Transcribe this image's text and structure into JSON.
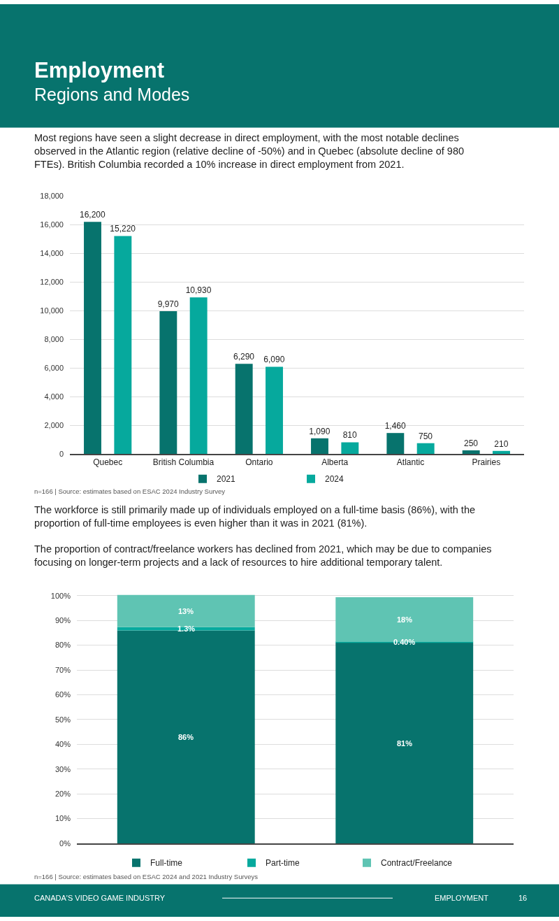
{
  "chart_data": [
    {
      "type": "bar",
      "title": "Employment",
      "subtitle": "Regions and Modes",
      "annotations": [
        "Most regions have seen a slight decrease in direct employment, with the most notable declines observed in the Atlantic region (relative decline of -50%) and in Quebec (absolute decline of 980 FTEs). British Columbia recorded a 10% increase in direct employment from 2021.",
        "n=166 | Source: estimates based on ESAC 2024 Industry Survey"
      ],
      "categories": [
        "Quebec",
        "British Columbia",
        "Ontario",
        "Alberta",
        "Atlantic",
        "Prairies"
      ],
      "series": [
        {
          "name": "2021",
          "color": "#07736d",
          "values": [
            16200,
            9970,
            6290,
            1090,
            1460,
            250
          ],
          "value_labels": [
            "16,200",
            "9,970",
            "6,290",
            "1,090",
            "1,460",
            "250"
          ]
        },
        {
          "name": "2024",
          "color": "#06a99d",
          "values": [
            15220,
            10930,
            6090,
            810,
            750,
            210
          ],
          "value_labels": [
            "15,220",
            "10,930",
            "6,090",
            "810",
            "750",
            "210"
          ]
        }
      ],
      "ylim": [
        0,
        18000
      ],
      "yticks": [
        {
          "value": 0,
          "label": "0"
        },
        {
          "value": 2000,
          "label": "2,000"
        },
        {
          "value": 4000,
          "label": "4,000"
        },
        {
          "value": 6000,
          "label": "6,000"
        },
        {
          "value": 8000,
          "label": "8,000"
        },
        {
          "value": 10000,
          "label": "10,000"
        },
        {
          "value": 12000,
          "label": "12,000"
        },
        {
          "value": 14000,
          "label": "14,000"
        },
        {
          "value": 16000,
          "label": "16,000"
        },
        {
          "value": 18000,
          "label": "18,000"
        }
      ],
      "grid": "y",
      "legend": "bottom"
    },
    {
      "type": "bar",
      "stacked": true,
      "annotations": [
        "The workforce is still primarily made up of individuals employed on a full-time basis (86%), with the proportion of full-time employees is even higher than it was in 2021 (81%).",
        "The proportion of contract/freelance workers has declined from 2021, which may be due to companies focusing on longer-term projects and a lack of resources to hire additional temporary talent.",
        "n=166 | Source: estimates based on ESAC 2024 and 2021 Industry Surveys",
        "CANADA'S VIDEO GAME INDUSTRY",
        "EMPLOYMENT",
        "16"
      ],
      "categories": [
        null,
        null
      ],
      "series": [
        {
          "name": "Full-time",
          "color": "#07736d",
          "values": [
            86,
            81
          ],
          "value_labels": [
            "86%",
            "81%"
          ]
        },
        {
          "name": "Part-time",
          "color": "#06a99d",
          "values": [
            1.3,
            0.4
          ],
          "value_labels": [
            "1.3%",
            "0.40%"
          ]
        },
        {
          "name": "Contract/Freelance",
          "color": "#5fc4b3",
          "values": [
            13,
            18
          ],
          "value_labels": [
            "13%",
            "18%"
          ]
        }
      ],
      "ylim": [
        0,
        101
      ],
      "yticks": [
        {
          "value": 0,
          "label": "0%"
        },
        {
          "value": 10,
          "label": "10%"
        },
        {
          "value": 20,
          "label": "20%"
        },
        {
          "value": 30,
          "label": "30%"
        },
        {
          "value": 40,
          "label": "40%"
        },
        {
          "value": 50,
          "label": "50%"
        },
        {
          "value": 60,
          "label": "60%"
        },
        {
          "value": 70,
          "label": "70%"
        },
        {
          "value": 80,
          "label": "80%"
        },
        {
          "value": 90,
          "label": "90%"
        },
        {
          "value": 100,
          "label": "100%"
        }
      ],
      "grid": "y",
      "legend": "bottom",
      "tick_labels": "y"
    }
  ]
}
